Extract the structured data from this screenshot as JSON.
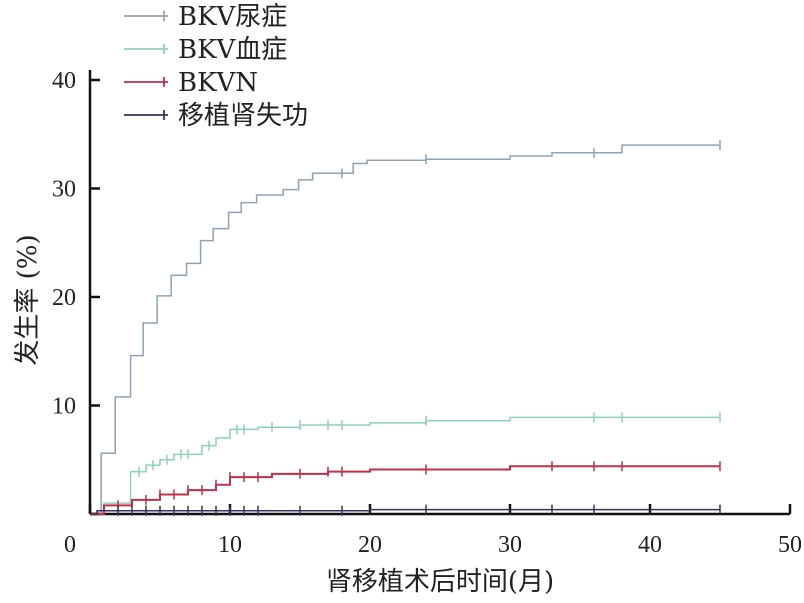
{
  "chart_data": {
    "type": "line",
    "title": "",
    "xlabel": "肾移植术后时间(月)",
    "ylabel": "发生率 (%)",
    "xlim": [
      0,
      50
    ],
    "ylim": [
      0,
      40
    ],
    "xticks": [
      "0",
      "10",
      "20",
      "30",
      "40",
      "50"
    ],
    "yticks": [
      "0",
      "10",
      "20",
      "30",
      "40"
    ],
    "grid": false,
    "legend_position": "top-left",
    "step": true,
    "series": [
      {
        "name": "BKV尿症",
        "color": "#8fa3b8",
        "x": [
          0,
          0.8,
          1.8,
          2.9,
          3.8,
          4.8,
          5.8,
          6.9,
          7.9,
          8.8,
          9.9,
          10.8,
          11.9,
          13.8,
          14.9,
          15.9,
          18.8,
          19.8,
          24,
          30,
          33,
          38,
          45
        ],
        "y": [
          0,
          5.6,
          10.8,
          14.6,
          17.6,
          20.1,
          22,
          23.1,
          25.2,
          26.3,
          27.8,
          28.7,
          29.4,
          29.9,
          30.8,
          31.4,
          32.3,
          32.6,
          32.7,
          33,
          33.3,
          34,
          34
        ],
        "censored": [
          18,
          24,
          36,
          45
        ]
      },
      {
        "name": "BKV血症",
        "color": "#8fd0b8",
        "x": [
          0,
          1,
          2.9,
          4,
          5,
          6,
          8,
          9,
          10,
          12,
          15,
          20,
          24,
          30,
          45
        ],
        "y": [
          0,
          1,
          3.9,
          4.5,
          5,
          5.5,
          6.3,
          7,
          7.8,
          8,
          8.2,
          8.4,
          8.6,
          8.9,
          8.9
        ],
        "censored": [
          3.5,
          4.5,
          5.5,
          6.5,
          7,
          8.5,
          10.5,
          11,
          13,
          15,
          17,
          18,
          24,
          36,
          38,
          45
        ]
      },
      {
        "name": "BKVN",
        "color": "#c0304a",
        "x": [
          0,
          1,
          3,
          5,
          7,
          9,
          10,
          13,
          17,
          20,
          30,
          45
        ],
        "y": [
          0,
          0.8,
          1.3,
          1.8,
          2.2,
          2.7,
          3.4,
          3.7,
          3.9,
          4.1,
          4.4,
          4.4
        ],
        "censored": [
          2,
          4,
          5,
          6,
          7,
          8,
          9,
          10,
          11,
          12,
          15,
          17,
          18,
          24,
          33,
          36,
          38,
          45
        ]
      },
      {
        "name": "移植肾失功",
        "color": "#3a3060",
        "x": [
          0,
          0.5,
          20,
          45
        ],
        "y": [
          0,
          0.3,
          0.4,
          0.4
        ],
        "censored": [
          2,
          3,
          4,
          5,
          6,
          7,
          8,
          9,
          10,
          11,
          12,
          15,
          18,
          24,
          33,
          36,
          45
        ]
      }
    ]
  }
}
